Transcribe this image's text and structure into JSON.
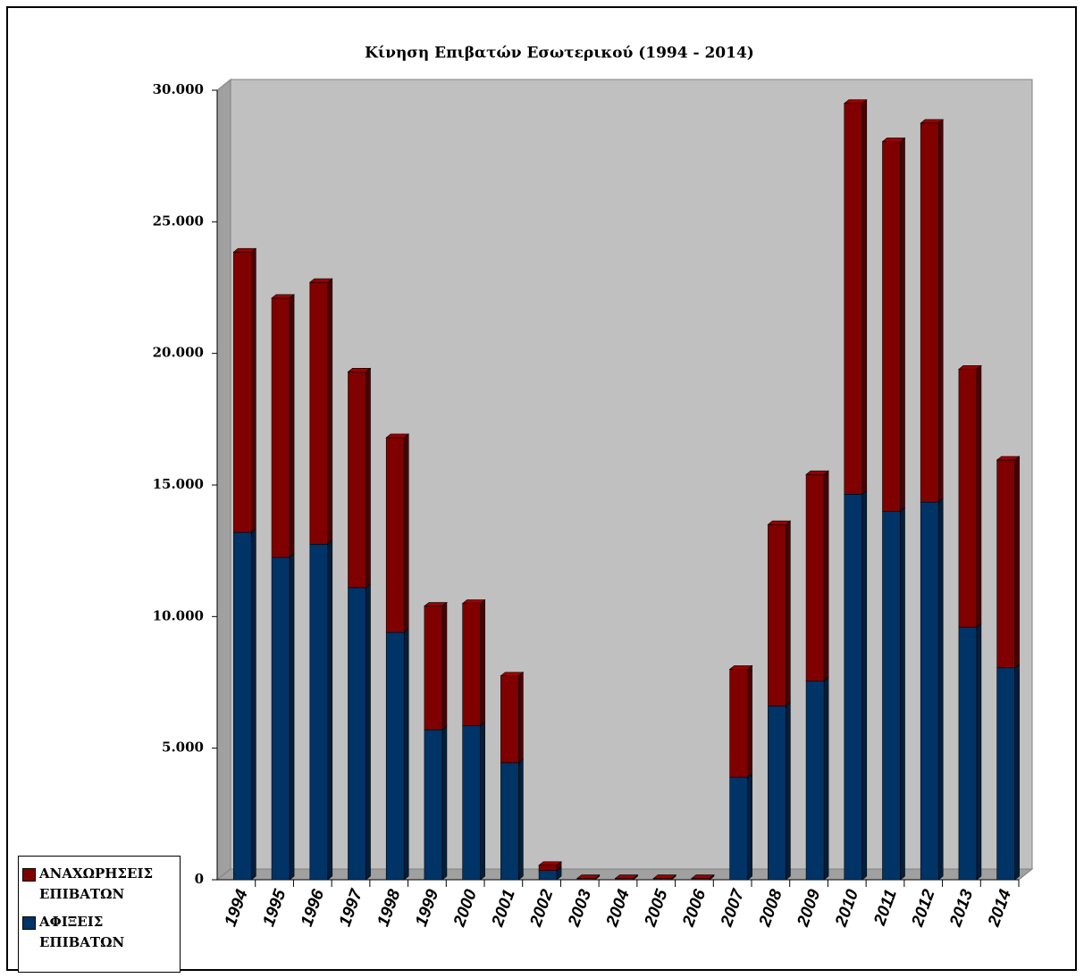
{
  "chart_data": {
    "type": "bar3d_stacked",
    "title": "Κίνηση Επιβατών Εσωτερικού (1994 - 2014)",
    "categories": [
      "1994",
      "1995",
      "1996",
      "1997",
      "1998",
      "1999",
      "2000",
      "2001",
      "2002",
      "2003",
      "2004",
      "2005",
      "2006",
      "2007",
      "2008",
      "2009",
      "2010",
      "2011",
      "2012",
      "2013",
      "2014"
    ],
    "series": [
      {
        "name": "ΑΦΙΞΕΙΣ ΕΠΙΒΑΤΩΝ",
        "color": "#003366",
        "values": [
          13200,
          12250,
          12750,
          11100,
          9400,
          5700,
          5850,
          4450,
          350,
          0,
          0,
          0,
          0,
          3900,
          6600,
          7550,
          14650,
          14000,
          14350,
          9600,
          8050
        ]
      },
      {
        "name": "ΑΝΑΧΩΡΗΣΕΙΣ ΕΠΙΒΑΤΩΝ",
        "color": "#800000",
        "values": [
          10650,
          9850,
          9950,
          8200,
          7400,
          4700,
          4650,
          3300,
          200,
          50,
          50,
          50,
          50,
          4100,
          6900,
          7850,
          14850,
          14050,
          14400,
          9800,
          7900
        ]
      }
    ],
    "stacked": true,
    "ylim": [
      0,
      30000
    ],
    "yticks": [
      0,
      {
        "value": 5000,
        "label": "5.000"
      },
      {
        "value": 10000,
        "label": "10.000"
      },
      {
        "value": 15000,
        "label": "15.000"
      },
      {
        "value": 20000,
        "label": "20.000"
      },
      {
        "value": 25000,
        "label": "25.000"
      },
      {
        "value": 30000,
        "label": "30.000"
      }
    ],
    "legend_position": "bottom-left"
  }
}
